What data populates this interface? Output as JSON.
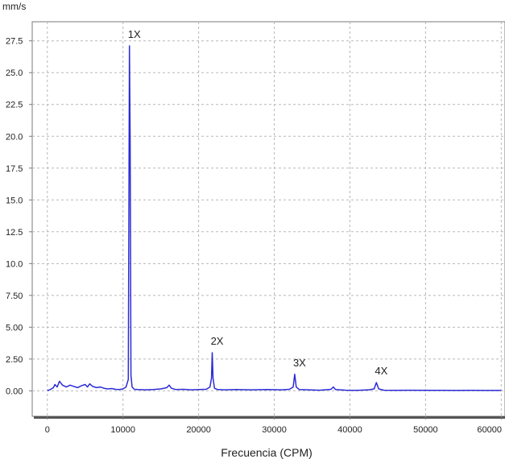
{
  "chart_data": {
    "type": "line",
    "y_unit": "mm/s",
    "xlabel": "Frecuencia (CPM)",
    "xlim": [
      -2000,
      60500
    ],
    "ylim": [
      -2.0,
      29.0
    ],
    "x_ticks": [
      0,
      10000,
      20000,
      30000,
      40000,
      50000,
      60000
    ],
    "x_tick_labels": [
      "0",
      "10000",
      "20000",
      "30000",
      "40000",
      "50000",
      "60000"
    ],
    "y_ticks": [
      0,
      2.5,
      5,
      7.5,
      10,
      12.5,
      15,
      17.5,
      20,
      22.5,
      25,
      27.5
    ],
    "y_tick_labels": [
      "0.00",
      "2.50",
      "5.00",
      "7.50",
      "10.0",
      "12.5",
      "15.0",
      "17.5",
      "20.0",
      "22.5",
      "25.0",
      "27.5"
    ],
    "grid": true,
    "colors": {
      "series": "#2b2bd6",
      "grid": "#b8b8b8",
      "plot_background": "#ffffff",
      "frame": "#7a7a7a",
      "frame_shadow": "#555555"
    },
    "series": [
      {
        "x": [
          0,
          400,
          800,
          1000,
          1300,
          1600,
          2000,
          2500,
          3000,
          3500,
          4000,
          4500,
          5000,
          5300,
          5600,
          6000,
          6500,
          7000,
          7500,
          8000,
          8500,
          9000,
          9500,
          10000,
          10400,
          10700,
          10850,
          10950,
          11050,
          11200,
          11500,
          12000,
          13000,
          14000,
          15000,
          15800,
          16100,
          16400,
          17000,
          18000,
          19000,
          20000,
          21000,
          21500,
          21700,
          21800,
          21900,
          22100,
          22500,
          23500,
          25000,
          27000,
          29000,
          31000,
          32000,
          32500,
          32700,
          32900,
          33300,
          34500,
          36000,
          37500,
          37800,
          38100,
          39500,
          41000,
          42500,
          43200,
          43500,
          43800,
          44500,
          46000,
          48000,
          50000,
          52000,
          54000,
          56000,
          58000,
          60000
        ],
        "y": [
          0.02,
          0.1,
          0.25,
          0.5,
          0.3,
          0.75,
          0.45,
          0.3,
          0.45,
          0.35,
          0.25,
          0.4,
          0.5,
          0.3,
          0.55,
          0.35,
          0.25,
          0.3,
          0.2,
          0.15,
          0.18,
          0.12,
          0.1,
          0.15,
          0.3,
          0.9,
          27.1,
          19.5,
          1.2,
          0.3,
          0.12,
          0.1,
          0.08,
          0.1,
          0.15,
          0.25,
          0.45,
          0.2,
          0.1,
          0.12,
          0.08,
          0.1,
          0.12,
          0.3,
          1.0,
          3.0,
          1.0,
          0.2,
          0.1,
          0.08,
          0.1,
          0.08,
          0.1,
          0.08,
          0.12,
          0.3,
          1.3,
          0.3,
          0.1,
          0.08,
          0.05,
          0.12,
          0.3,
          0.1,
          0.05,
          0.04,
          0.08,
          0.15,
          0.65,
          0.15,
          0.05,
          0.04,
          0.05,
          0.04,
          0.04,
          0.03,
          0.04,
          0.03,
          0.03
        ]
      }
    ],
    "annotations": [
      {
        "text": "1X",
        "x": 10850,
        "y": 27.1
      },
      {
        "text": "2X",
        "x": 21800,
        "y": 3.0
      },
      {
        "text": "3X",
        "x": 32700,
        "y": 1.3
      },
      {
        "text": "4X",
        "x": 43500,
        "y": 0.65
      }
    ]
  }
}
